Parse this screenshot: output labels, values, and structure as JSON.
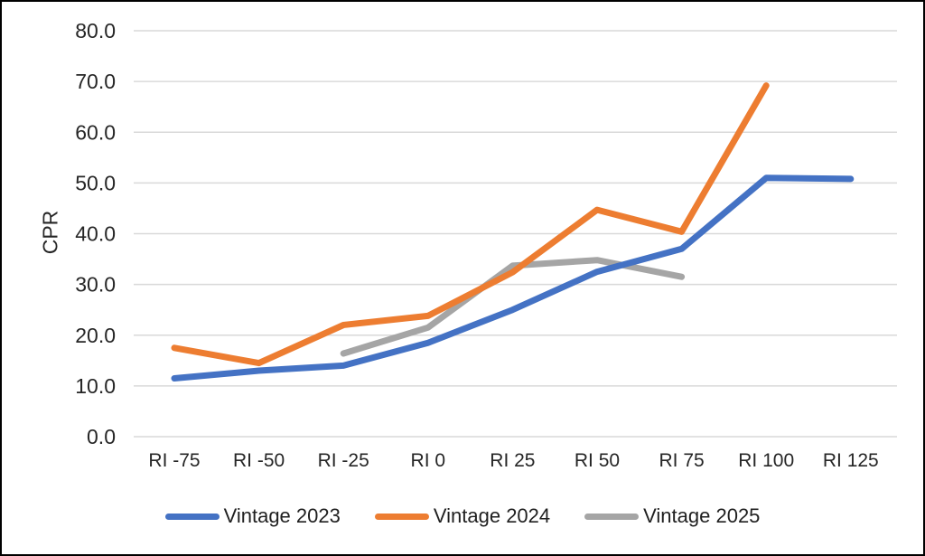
{
  "chart_data": {
    "type": "line",
    "title": "",
    "ylabel": "CPR",
    "xlabel": "",
    "categories": [
      "RI -75",
      "RI -50",
      "RI -25",
      "RI 0",
      "RI 25",
      "RI 50",
      "RI 75",
      "RI 100",
      "RI 125"
    ],
    "series": [
      {
        "name": "Vintage 2023",
        "color": "#4472C4",
        "values": [
          11.5,
          13.0,
          14.0,
          18.5,
          25.0,
          32.5,
          37.0,
          51.0,
          50.8
        ]
      },
      {
        "name": "Vintage 2024",
        "color": "#ED7D31",
        "values": [
          17.5,
          14.5,
          22.0,
          23.8,
          32.4,
          44.7,
          40.4,
          69.2,
          null
        ]
      },
      {
        "name": "Vintage 2025",
        "color": "#A5A5A5",
        "values": [
          null,
          null,
          16.4,
          21.5,
          33.7,
          34.8,
          31.5,
          null,
          null
        ]
      }
    ],
    "ylim": [
      0,
      80
    ],
    "ytick_step": 10,
    "ytick_labels": [
      "0.0",
      "10.0",
      "20.0",
      "30.0",
      "40.0",
      "50.0",
      "60.0",
      "70.0",
      "80.0"
    ],
    "grid": true,
    "legend_position": "bottom",
    "colors": {
      "gridline": "#D9D9D9",
      "tick_text": "#262626",
      "background": "#FFFFFF",
      "border": "#000000"
    }
  },
  "legend": {
    "items": [
      {
        "label": "Vintage 2023",
        "color": "#4472C4"
      },
      {
        "label": "Vintage 2024",
        "color": "#ED7D31"
      },
      {
        "label": "Vintage 2025",
        "color": "#A5A5A5"
      }
    ]
  }
}
